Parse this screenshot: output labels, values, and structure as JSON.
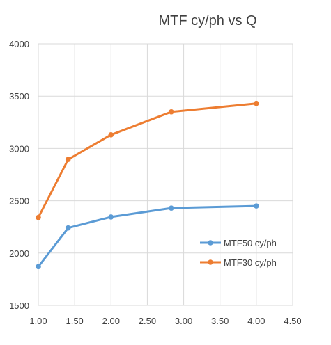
{
  "chart_data": {
    "type": "scatter",
    "title": "MTF cy/ph vs Q",
    "xlabel": "",
    "ylabel": "",
    "xlim": [
      1.0,
      4.5
    ],
    "ylim": [
      1500,
      4000
    ],
    "x_ticks": [
      "1.00",
      "1.50",
      "2.00",
      "2.50",
      "3.00",
      "3.50",
      "4.00",
      "4.50"
    ],
    "y_ticks": [
      "1500",
      "2000",
      "2500",
      "3000",
      "3500",
      "4000"
    ],
    "grid": true,
    "legend_position": "right",
    "series": [
      {
        "name": "MTF50 cy/ph",
        "color": "#5b9bd5",
        "x": [
          1.0,
          1.41,
          2.0,
          2.83,
          4.0
        ],
        "y": [
          1870,
          2240,
          2345,
          2430,
          2450
        ]
      },
      {
        "name": "MTF30 cy/ph",
        "color": "#ed7d31",
        "x": [
          1.0,
          1.41,
          2.0,
          2.83,
          4.0
        ],
        "y": [
          2340,
          2895,
          3130,
          3350,
          3430
        ]
      }
    ]
  }
}
